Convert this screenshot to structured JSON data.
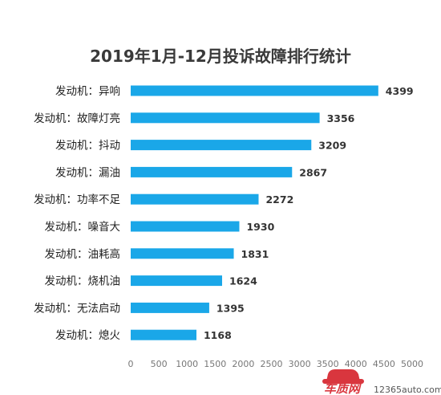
{
  "chart_data": {
    "type": "bar",
    "orientation": "horizontal",
    "title": "2019年1月-12月投诉故障排行统计",
    "categories": [
      "发动机：异响",
      "发动机：故障灯亮",
      "发动机：抖动",
      "发动机：漏油",
      "发动机：功率不足",
      "发动机：噪音大",
      "发动机：油耗高",
      "发动机：烧机油",
      "发动机：无法启动",
      "发动机：熄火"
    ],
    "values": [
      4399,
      3356,
      3209,
      2867,
      2272,
      1930,
      1831,
      1624,
      1395,
      1168
    ],
    "xlim": [
      0,
      5000
    ],
    "xticks": [
      "0",
      "500",
      "1000",
      "1500",
      "2000",
      "2500",
      "3000",
      "3500",
      "4000",
      "4500",
      "5000"
    ],
    "bar_color": "#1aa7e8",
    "grid": false,
    "xlabel": "",
    "ylabel": ""
  },
  "watermark": {
    "brand": "车质网",
    "url": "12365auto.com",
    "brand_color": "#d9363e"
  }
}
